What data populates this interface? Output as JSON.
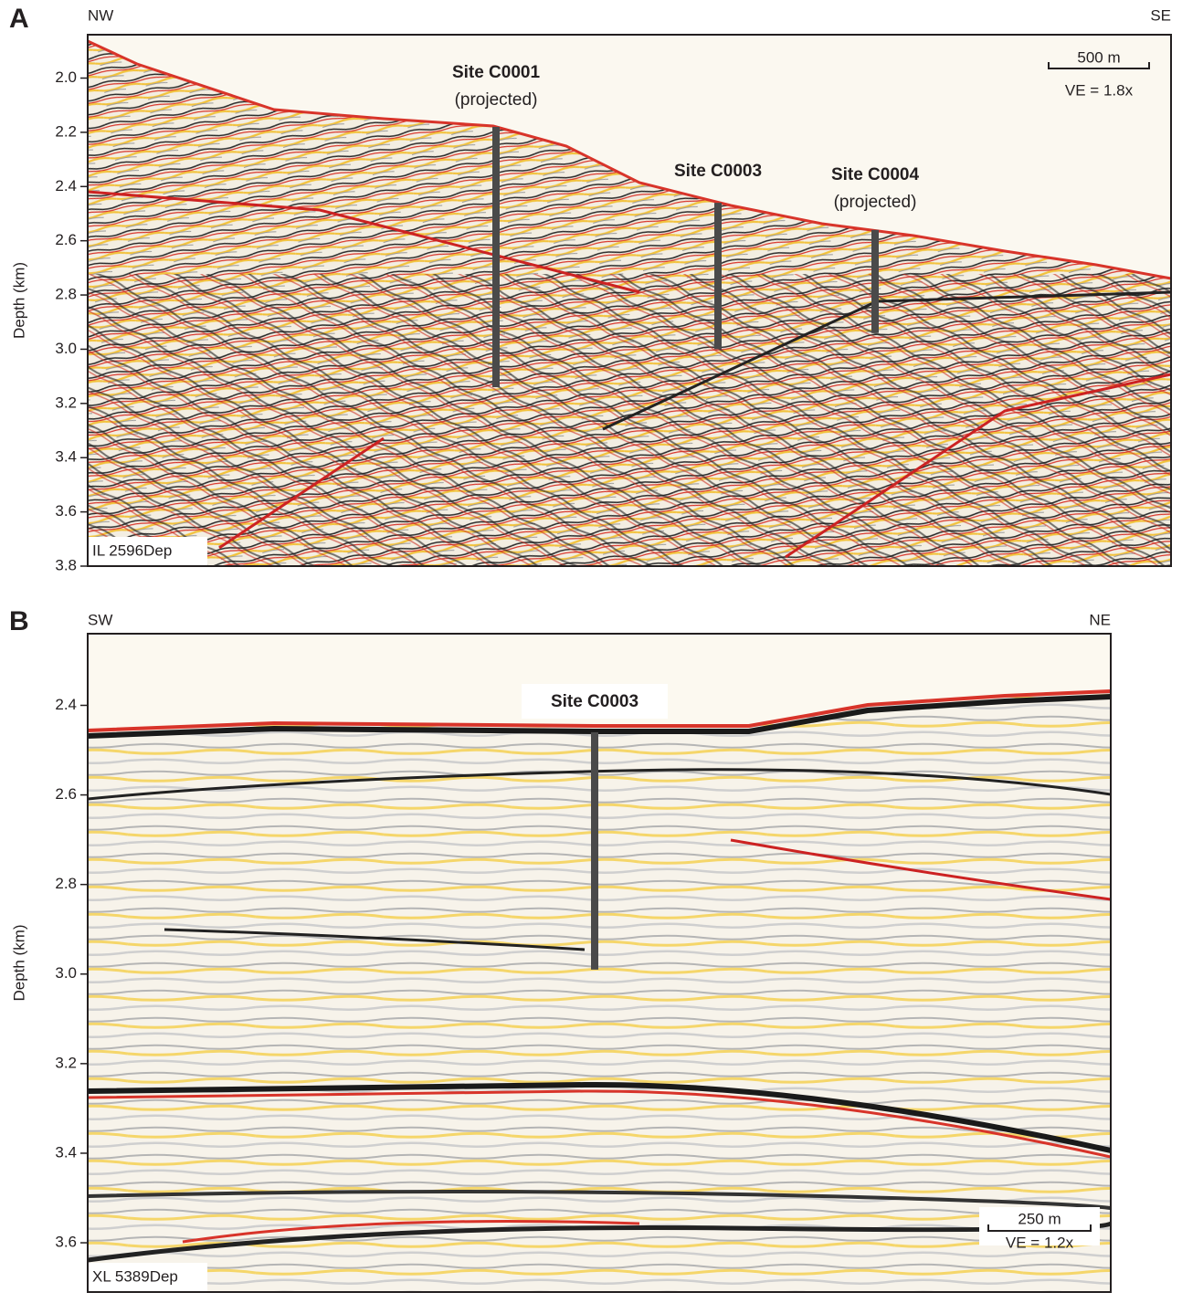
{
  "panels": [
    {
      "letter": "A",
      "left_direction": "NW",
      "right_direction": "SE",
      "y_axis_label": "Depth (km)",
      "ylim": [
        1.84,
        3.8
      ],
      "yticks": [
        {
          "value": 2.0,
          "label": "2.0"
        },
        {
          "value": 2.2,
          "label": "2.2"
        },
        {
          "value": 2.4,
          "label": "2.4"
        },
        {
          "value": 2.6,
          "label": "2.6"
        },
        {
          "value": 2.8,
          "label": "2.8"
        },
        {
          "value": 3.0,
          "label": "3.0"
        },
        {
          "value": 3.2,
          "label": "3.2"
        },
        {
          "value": 3.4,
          "label": "3.4"
        },
        {
          "value": 3.6,
          "label": "3.6"
        },
        {
          "value": 3.8,
          "label": "3.8"
        }
      ],
      "line_label": "IL 2596Dep",
      "scale_bar": "500 m",
      "vertical_exaggeration": "VE = 1.8x",
      "sites": [
        {
          "name": "Site C0001",
          "note": "(projected)",
          "top": 2.18,
          "bottom": 3.14
        },
        {
          "name": "Site C0003",
          "top": 2.46,
          "bottom": 3.0
        },
        {
          "name": "Site C0004",
          "note": "(projected)",
          "top": 2.56,
          "bottom": 2.94
        }
      ]
    },
    {
      "letter": "B",
      "left_direction": "SW",
      "right_direction": "NE",
      "y_axis_label": "Depth (km)",
      "ylim": [
        2.24,
        3.71
      ],
      "yticks": [
        {
          "value": 2.4,
          "label": "2.4"
        },
        {
          "value": 2.6,
          "label": "2.6"
        },
        {
          "value": 2.8,
          "label": "2.8"
        },
        {
          "value": 3.0,
          "label": "3.0"
        },
        {
          "value": 3.2,
          "label": "3.2"
        },
        {
          "value": 3.4,
          "label": "3.4"
        },
        {
          "value": 3.6,
          "label": "3.6"
        }
      ],
      "line_label": "XL 5389Dep",
      "scale_bar": "250 m",
      "vertical_exaggeration": "VE = 1.2x",
      "sites": [
        {
          "name": "Site C0003",
          "top": 2.46,
          "bottom": 2.99
        }
      ]
    }
  ]
}
